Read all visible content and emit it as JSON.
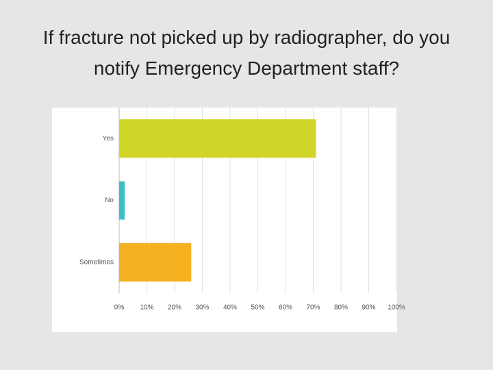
{
  "chart_data": {
    "type": "bar",
    "orientation": "horizontal",
    "title": "If fracture not picked up by radiographer, do you notify Emergency Department staff?",
    "categories": [
      "Yes",
      "No",
      "Sometimes"
    ],
    "values": [
      71,
      2,
      26
    ],
    "colors": [
      "#cfd628",
      "#3bbfc7",
      "#f5b120"
    ],
    "xlim": [
      0,
      100
    ],
    "xticks": [
      {
        "value": 0,
        "label": "0%"
      },
      {
        "value": 10,
        "label": "10%"
      },
      {
        "value": 20,
        "label": "20%"
      },
      {
        "value": 30,
        "label": "30%"
      },
      {
        "value": 40,
        "label": "40%"
      },
      {
        "value": 50,
        "label": "50%"
      },
      {
        "value": 60,
        "label": "60%"
      },
      {
        "value": 70,
        "label": "70%"
      },
      {
        "value": 80,
        "label": "80%"
      },
      {
        "value": 90,
        "label": "90%"
      },
      {
        "value": 100,
        "label": "100%"
      }
    ],
    "grid": true
  }
}
